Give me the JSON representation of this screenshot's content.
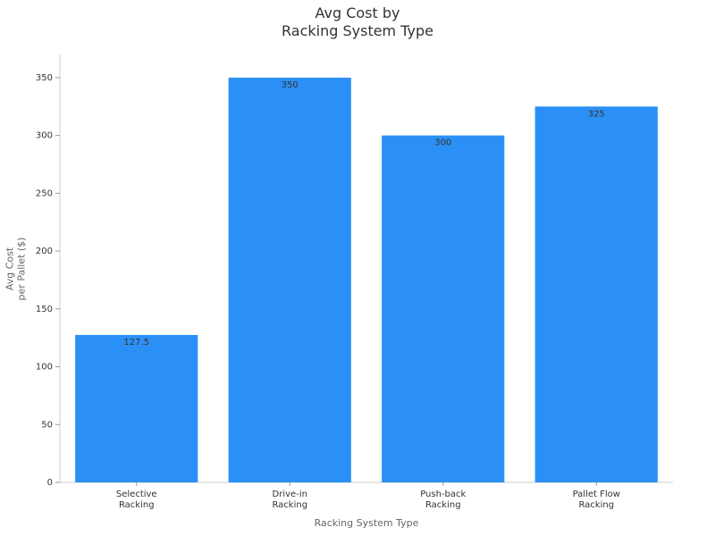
{
  "chart_data": {
    "type": "bar",
    "title": "Avg Cost by\nRacking System Type",
    "x_label": "Racking System Type",
    "y_label": "Avg Cost\nper Pallet ($)",
    "categories": [
      "Selective\nRacking",
      "Drive-in\nRacking",
      "Push-back\nRacking",
      "Pallet Flow\nRacking"
    ],
    "values": [
      127.5,
      350,
      300,
      325
    ],
    "color": "#2b90f5",
    "ylim": [
      0,
      370
    ],
    "yticks": [
      0,
      50,
      100,
      150,
      200,
      250,
      300,
      350
    ],
    "grid": false
  }
}
